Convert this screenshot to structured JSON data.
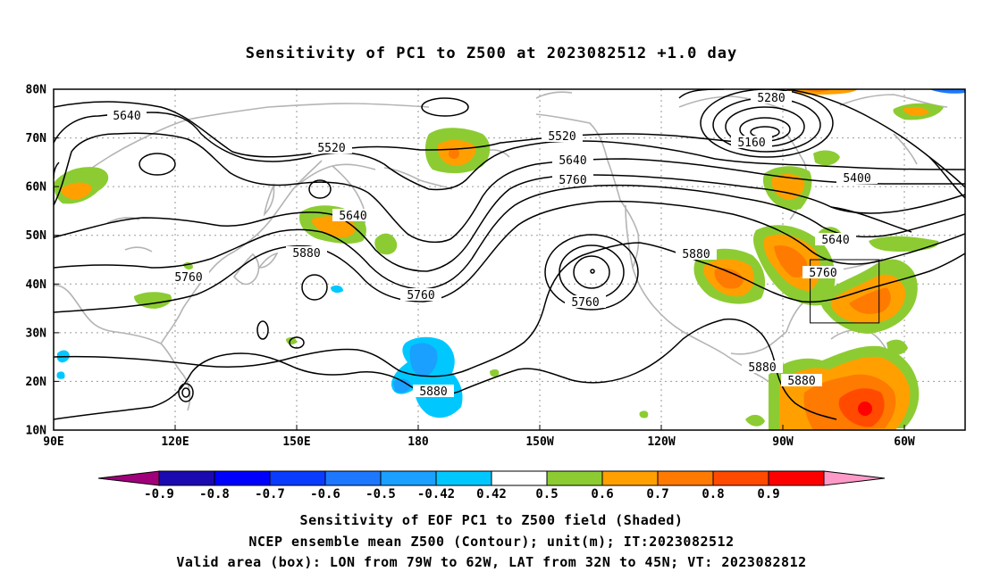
{
  "title": "Sensitivity of PC1 to Z500 at 2023082512 +1.0 day",
  "latitudes": [
    "80N",
    "70N",
    "60N",
    "50N",
    "40N",
    "30N",
    "20N",
    "10N"
  ],
  "longitudes": [
    "90E",
    "120E",
    "150E",
    "180",
    "150W",
    "120W",
    "90W",
    "60W"
  ],
  "contour_labels": [
    "5640",
    "5520",
    "5520",
    "5640",
    "5760",
    "5280",
    "5160",
    "5400",
    "5640",
    "5880",
    "5760",
    "5760",
    "5760",
    "5640",
    "5760",
    "5880",
    "5880",
    "5880",
    "5880"
  ],
  "colorbar": {
    "ticks": [
      "-0.9",
      "-0.8",
      "-0.7",
      "-0.6",
      "-0.5",
      "-0.42",
      "0.42",
      "0.5",
      "0.6",
      "0.7",
      "0.8",
      "0.9"
    ],
    "colors": [
      "#a0007a",
      "#1a0ab0",
      "#0000ff",
      "#0a3cff",
      "#1d78ff",
      "#1aa0ff",
      "#00c8ff",
      "#ffffff",
      "#8ccc32",
      "#ffa000",
      "#ff7a00",
      "#ff4a00",
      "#ff0000",
      "#ff9ac8"
    ]
  },
  "captions": [
    "Sensitivity of EOF PC1 to Z500 field (Shaded)",
    "NCEP ensemble mean Z500 (Contour); unit(m); IT:2023082512",
    "Valid area (box): LON from 79W to 62W, LAT from 32N to 45N; VT: 2023082812"
  ]
}
